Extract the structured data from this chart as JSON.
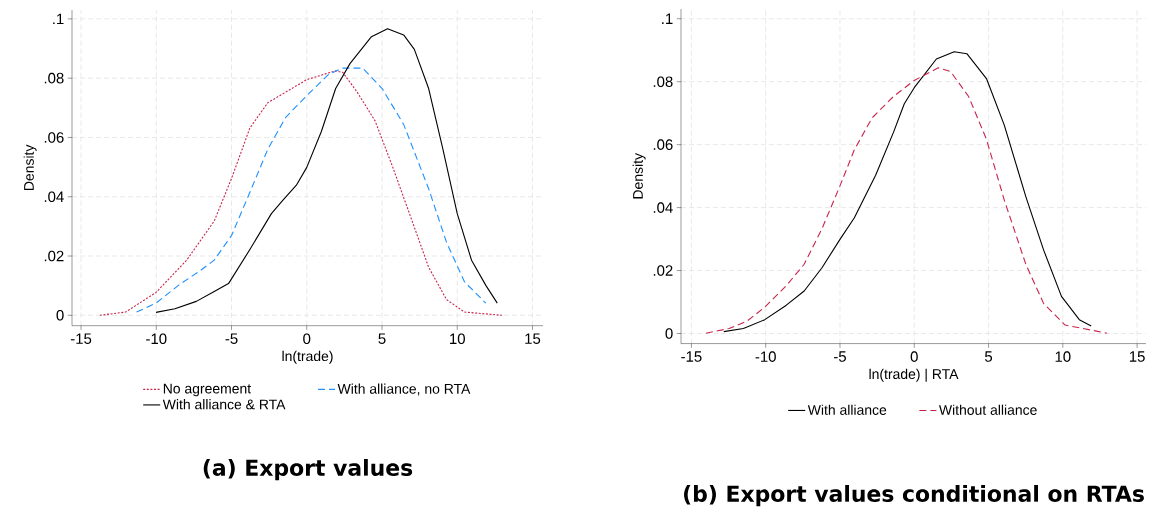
{
  "chart_data": [
    {
      "type": "line",
      "title": "(a) Export values",
      "xlabel": "ln(trade)",
      "ylabel": "Density",
      "xlim": [
        -15.6,
        15.7
      ],
      "ylim": [
        -0.0035,
        0.103
      ],
      "xticks": [
        -15,
        -10,
        -5,
        0,
        5,
        10,
        15
      ],
      "yticks": [
        0,
        {
          "value": 0.02,
          "label": ".02"
        },
        {
          "value": 0.04,
          "label": ".04"
        },
        {
          "value": 0.06,
          "label": ".06"
        },
        {
          "value": 0.08,
          "label": ".08"
        },
        {
          "value": 0.1,
          "label": ".1"
        }
      ],
      "grid": true,
      "legend": "bottom",
      "marker": "none",
      "series": [
        {
          "name": "No agreement",
          "color": "#c8244a",
          "line_style": "dotted",
          "x": [
            -13.75,
            -12.04,
            -10.02,
            -7.98,
            -6.15,
            -4.99,
            -3.78,
            -2.59,
            -1.4,
            0,
            1.92,
            2.4,
            3.35,
            4.54,
            5.72,
            6.91,
            8.1,
            9.29,
            10.48,
            12.97
          ],
          "values": [
            0,
            0.0011,
            0.0077,
            0.0186,
            0.0318,
            0.0463,
            0.0632,
            0.0717,
            0.0753,
            0.0795,
            0.0825,
            0.0819,
            0.0753,
            0.0656,
            0.0499,
            0.0331,
            0.0162,
            0.0053,
            0.0011,
            0
          ]
        },
        {
          "name": "With alliance, no RTA",
          "color": "#1e90ff",
          "line_style": "dashed",
          "x": [
            -11.31,
            -10.02,
            -8.53,
            -7.1,
            -6.15,
            -4.99,
            -3.78,
            -2.59,
            -1.4,
            0,
            1.45,
            2.4,
            3.71,
            5.01,
            6.44,
            8.1,
            9.29,
            10.48,
            11.9
          ],
          "values": [
            0.0011,
            0.0041,
            0.0101,
            0.015,
            0.0186,
            0.027,
            0.0415,
            0.056,
            0.0668,
            0.0741,
            0.0813,
            0.0834,
            0.0834,
            0.0765,
            0.0644,
            0.0427,
            0.0246,
            0.0113,
            0.0041
          ]
        },
        {
          "name": "With alliance & RTA",
          "color": "#000000",
          "line_style": "solid",
          "x": [
            -10.02,
            -8.76,
            -7.34,
            -6.15,
            -5.2,
            -3.78,
            -2.35,
            -1.64,
            -0.69,
            0,
            0.97,
            1.92,
            2.87,
            4.3,
            5.37,
            6.44,
            7.15,
            8.1,
            9.05,
            10.0,
            10.95,
            11.9,
            12.66
          ],
          "values": [
            0.001,
            0.0022,
            0.0047,
            0.008,
            0.0107,
            0.0222,
            0.0343,
            0.0385,
            0.0439,
            0.0499,
            0.062,
            0.0765,
            0.0849,
            0.094,
            0.0967,
            0.0946,
            0.0897,
            0.0765,
            0.056,
            0.0343,
            0.0186,
            0.0101,
            0.0041
          ]
        }
      ]
    },
    {
      "type": "line",
      "title": "(b) Export values conditional on RTAs",
      "xlabel": "ln(trade) | RTA",
      "ylabel": "Density",
      "xlim": [
        -15.7,
        15.6
      ],
      "ylim": [
        -0.0032,
        0.1031
      ],
      "xticks": [
        -15,
        -10,
        -5,
        0,
        5,
        10,
        15
      ],
      "yticks": [
        0,
        {
          "value": 0.02,
          "label": ".02"
        },
        {
          "value": 0.04,
          "label": ".04"
        },
        {
          "value": 0.06,
          "label": ".06"
        },
        {
          "value": 0.08,
          "label": ".08"
        },
        {
          "value": 0.1,
          "label": ".1"
        }
      ],
      "grid": true,
      "legend": "bottom",
      "marker": "none",
      "series": [
        {
          "name": "With alliance",
          "color": "#000000",
          "line_style": "solid",
          "x": [
            -12.82,
            -11.5,
            -10.06,
            -8.61,
            -7.41,
            -6.21,
            -5.0,
            -4.04,
            -2.6,
            -1.4,
            -0.67,
            0,
            1.49,
            2.69,
            3.54,
            4.86,
            6.06,
            7.51,
            8.71,
            9.91,
            11.11,
            11.91
          ],
          "values": [
            0.0006,
            0.0016,
            0.0044,
            0.009,
            0.0135,
            0.0209,
            0.0299,
            0.0367,
            0.0503,
            0.0639,
            0.073,
            0.0781,
            0.0872,
            0.0895,
            0.0889,
            0.081,
            0.0662,
            0.0435,
            0.0265,
            0.0118,
            0.0044,
            0.0024
          ]
        },
        {
          "name": "Without alliance",
          "color": "#c8244a",
          "line_style": "dashed",
          "x": [
            -14.02,
            -12.46,
            -11.26,
            -10.06,
            -8.61,
            -7.41,
            -6.21,
            -5.0,
            -4.04,
            -2.84,
            -1.4,
            0,
            1.61,
            2.45,
            3.66,
            4.86,
            6.06,
            7.51,
            8.71,
            10.15,
            12.97
          ],
          "values": [
            0.0001,
            0.0016,
            0.0039,
            0.0084,
            0.0152,
            0.022,
            0.0333,
            0.0469,
            0.0583,
            0.0685,
            0.0753,
            0.0804,
            0.0844,
            0.0832,
            0.0753,
            0.0617,
            0.0424,
            0.022,
            0.0095,
            0.0027,
            0.0001
          ]
        }
      ]
    }
  ]
}
